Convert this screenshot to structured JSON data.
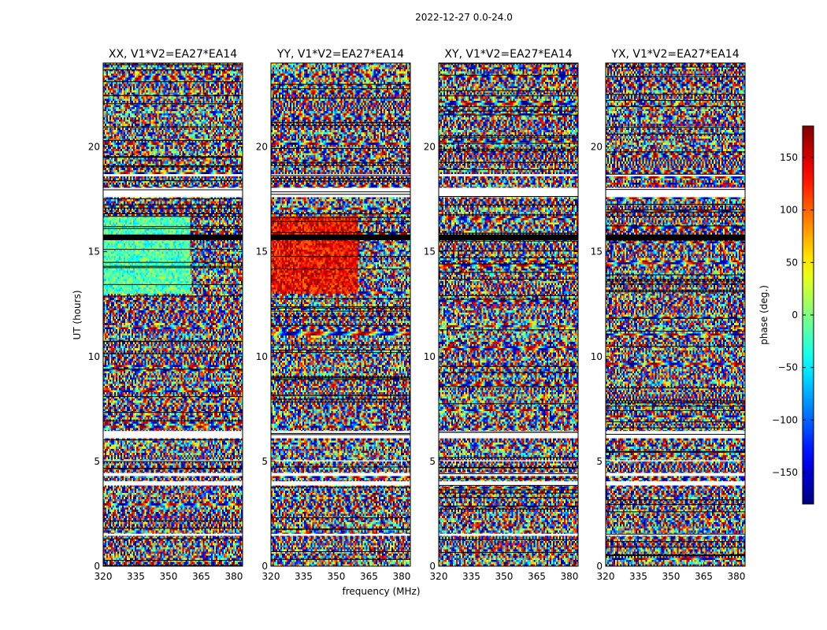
{
  "chart_data": {
    "type": "heatmap",
    "suptitle": "2022-12-27 0.0-24.0",
    "xlabel": "frequency (MHz)",
    "ylabel": "UT (hours)",
    "xlim": [
      320,
      384
    ],
    "ylim": [
      0,
      24
    ],
    "xticks": [
      320,
      335,
      350,
      365,
      380
    ],
    "yticks": [
      0,
      5,
      10,
      15,
      20
    ],
    "colormap": "jet",
    "colorbar": {
      "label": "phase (deg.)",
      "range": [
        -180,
        180
      ],
      "ticks": [
        150,
        100,
        50,
        0,
        -50,
        -100,
        -150
      ],
      "tick_labels": [
        "150",
        "100",
        "50",
        "0",
        "−50",
        "−100",
        "−150"
      ]
    },
    "panels": [
      {
        "title": "XX, V1*V2=EA27*EA14",
        "pol": "XX"
      },
      {
        "title": "YY, V1*V2=EA27*EA14",
        "pol": "YY"
      },
      {
        "title": "XY, V1*V2=EA27*EA14",
        "pol": "XY"
      },
      {
        "title": "YX, V1*V2=EA27*EA14",
        "pol": "YX"
      }
    ],
    "flagged_hours": [
      [
        17.6,
        18.05
      ],
      [
        6.1,
        6.45
      ],
      [
        3.85,
        4.05
      ],
      [
        4.3,
        4.45
      ],
      [
        1.45,
        1.55
      ],
      [
        5.0,
        5.05
      ],
      [
        18.6,
        18.7
      ],
      [
        15.6,
        15.8
      ]
    ]
  }
}
